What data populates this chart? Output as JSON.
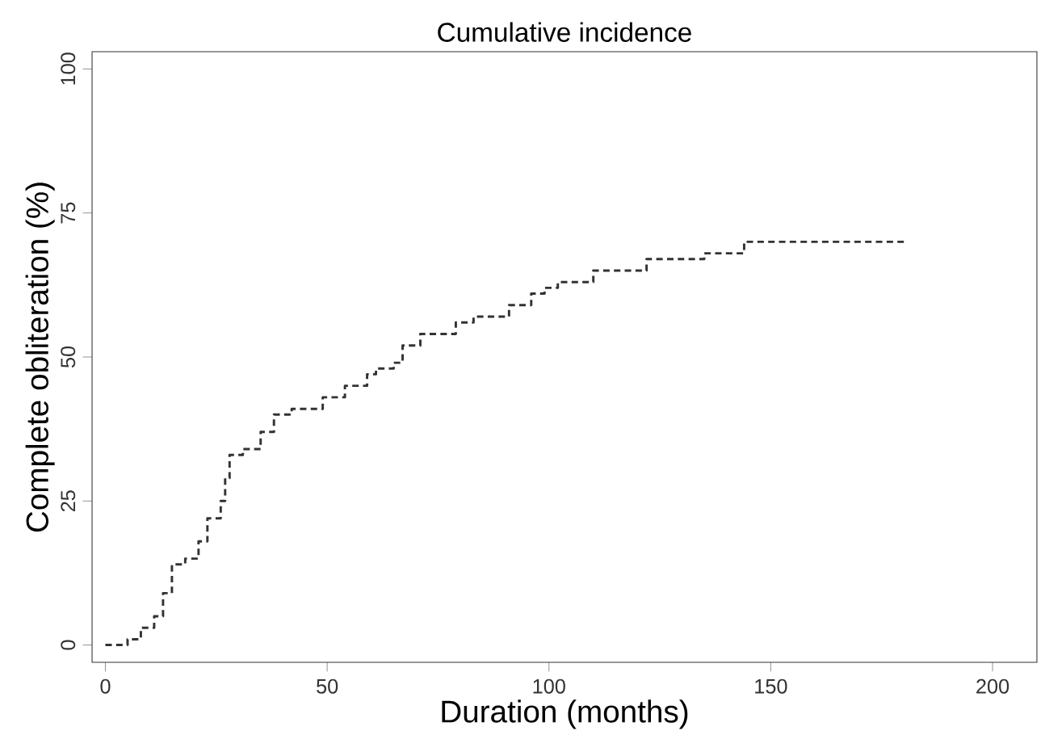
{
  "chart_data": {
    "type": "step",
    "title": "Cumulative incidence",
    "xlabel": "Duration (months)",
    "ylabel": "Complete obliteration (%)",
    "x": [
      0,
      5,
      8,
      11,
      13,
      15,
      18,
      21,
      23,
      26,
      27,
      28,
      31,
      35,
      38,
      42,
      49,
      54,
      59,
      61,
      65,
      67,
      71,
      79,
      83,
      91,
      96,
      99,
      102,
      110,
      122,
      135,
      144,
      180
    ],
    "values": [
      0,
      1,
      3,
      5,
      9,
      14,
      15,
      18,
      22,
      25,
      29,
      33,
      34,
      37,
      40,
      41,
      43,
      45,
      47,
      48,
      49,
      52,
      54,
      56,
      57,
      59,
      61,
      62,
      63,
      65,
      67,
      68,
      70,
      70
    ],
    "color": "#333333",
    "line_style": "dashed",
    "grid": false,
    "xlim": [
      -3,
      210
    ],
    "ylim": [
      -3,
      103
    ],
    "xticks": [
      0,
      50,
      100,
      150,
      200
    ],
    "yticks": [
      0,
      25,
      50,
      75,
      100
    ]
  }
}
